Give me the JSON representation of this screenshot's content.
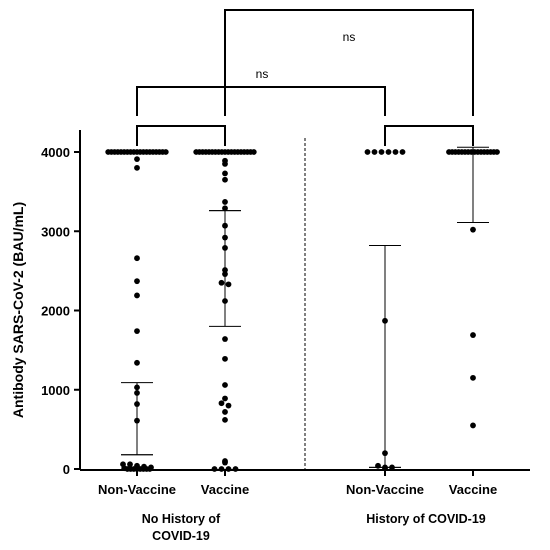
{
  "chart_data": {
    "type": "scatter",
    "subtype": "dot-plot",
    "ylabel": "Antibody SARS-CoV-2 (BAU/mL)",
    "ylim": [
      0,
      4000
    ],
    "yticks": [
      0,
      1000,
      2000,
      3000,
      4000
    ],
    "categories": [
      "Non-Vaccine",
      "Vaccine",
      "Non-Vaccine",
      "Vaccine"
    ],
    "groups": [
      {
        "label": "No History of\nCOVID-19",
        "label_lines": [
          "No History of",
          "COVID-19"
        ],
        "categories": [
          0,
          1
        ]
      },
      {
        "label": "History of COVID-19",
        "label_lines": [
          "History of COVID-19"
        ],
        "categories": [
          2,
          3
        ]
      }
    ],
    "series": [
      {
        "category": "Non-Vaccine",
        "group": "No History of COVID-19",
        "points": [
          4000,
          4000,
          4000,
          4000,
          4000,
          4000,
          4000,
          4000,
          4000,
          4000,
          4000,
          4000,
          4000,
          4000,
          4000,
          4000,
          4000,
          4000,
          4000,
          3910,
          3800,
          2660,
          2370,
          2190,
          1740,
          1340,
          1030,
          960,
          820,
          610,
          60,
          60,
          40,
          30,
          20,
          10,
          0,
          0,
          0,
          0,
          0,
          0,
          0,
          0
        ],
        "median": 180,
        "q1": 180,
        "q3": 1090
      },
      {
        "category": "Vaccine",
        "group": "No History of COVID-19",
        "points": [
          4000,
          4000,
          4000,
          4000,
          4000,
          4000,
          4000,
          4000,
          4000,
          4000,
          4000,
          4000,
          4000,
          4000,
          4000,
          4000,
          4000,
          4000,
          4000,
          3890,
          3850,
          3730,
          3650,
          3370,
          3290,
          3070,
          2920,
          2790,
          2510,
          2350,
          2330,
          2460,
          2120,
          1640,
          1390,
          1060,
          890,
          830,
          800,
          720,
          620,
          100,
          80,
          0,
          0,
          0,
          0
        ],
        "median": 3260,
        "q1": 1800,
        "q3": 3260
      },
      {
        "category": "Non-Vaccine",
        "group": "History of COVID-19",
        "points": [
          4000,
          4000,
          4000,
          4000,
          4000,
          4000,
          1870,
          200,
          40,
          20,
          20,
          10
        ],
        "median": 20,
        "q1": 20,
        "q3": 2820
      },
      {
        "category": "Vaccine",
        "group": "History of COVID-19",
        "points": [
          4000,
          4000,
          4000,
          4000,
          4000,
          4000,
          4000,
          4000,
          4000,
          4000,
          4000,
          4000,
          4000,
          4000,
          4000,
          4000,
          3020,
          1690,
          1150,
          550
        ],
        "median": 4000,
        "q1": 3110,
        "q3": 4060
      }
    ],
    "comparisons": [
      {
        "from": 0,
        "to": 1,
        "label": "",
        "level": 1
      },
      {
        "from": 2,
        "to": 3,
        "label": "",
        "level": 1
      },
      {
        "from": 0,
        "to": 2,
        "label": "ns",
        "level": 2
      },
      {
        "from": 1,
        "to": 3,
        "label": "ns",
        "level": 3
      }
    ],
    "divider_between_groups": true,
    "grid": false,
    "legend": "none",
    "colors": {
      "points": "#000000",
      "axis": "#000000"
    }
  }
}
